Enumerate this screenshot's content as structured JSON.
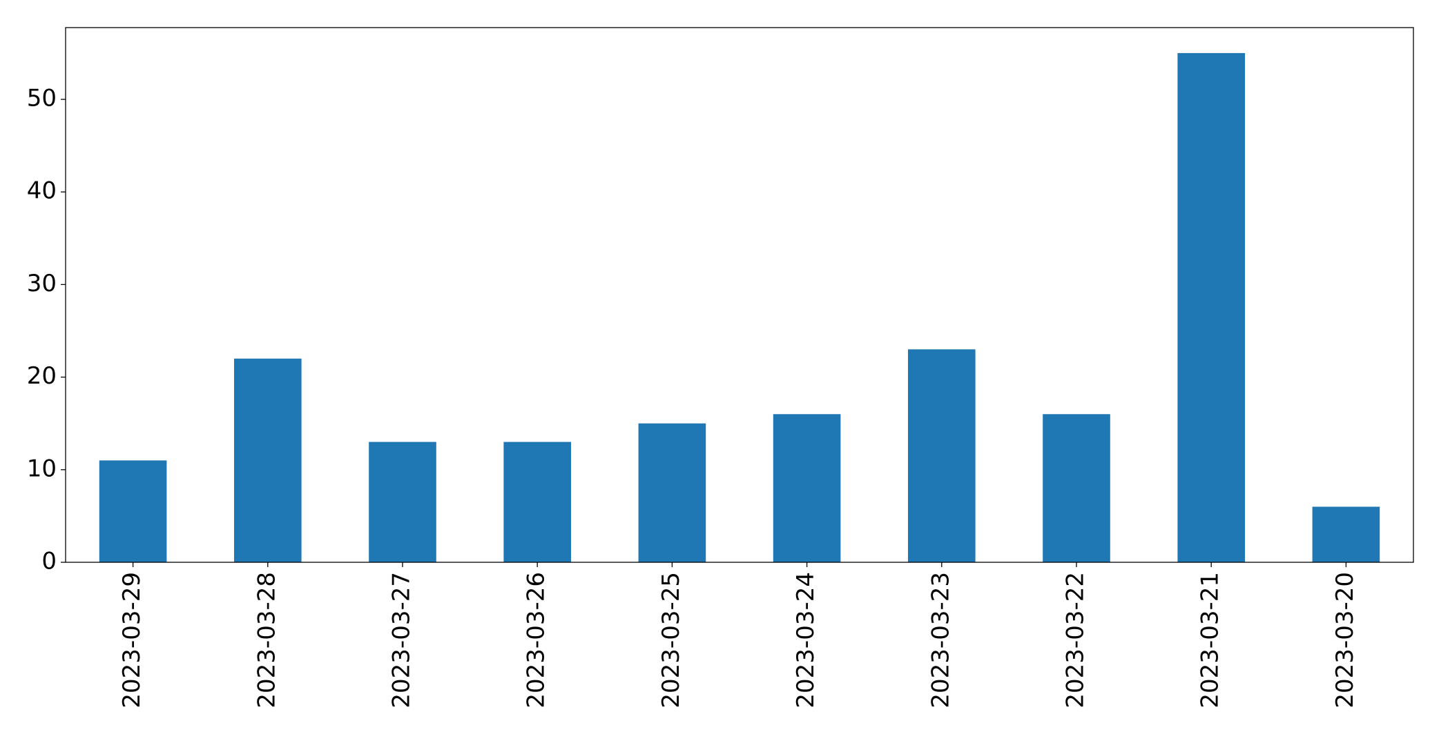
{
  "chart_data": {
    "type": "bar",
    "categories": [
      "2023-03-29",
      "2023-03-28",
      "2023-03-27",
      "2023-03-26",
      "2023-03-25",
      "2023-03-24",
      "2023-03-23",
      "2023-03-22",
      "2023-03-21",
      "2023-03-20"
    ],
    "values": [
      11,
      22,
      13,
      13,
      15,
      16,
      23,
      16,
      55,
      6
    ],
    "color": "#1f77b4",
    "ylim": [
      0,
      57.75
    ],
    "yticks": [
      0,
      10,
      20,
      30,
      40,
      50
    ],
    "grid": false
  }
}
